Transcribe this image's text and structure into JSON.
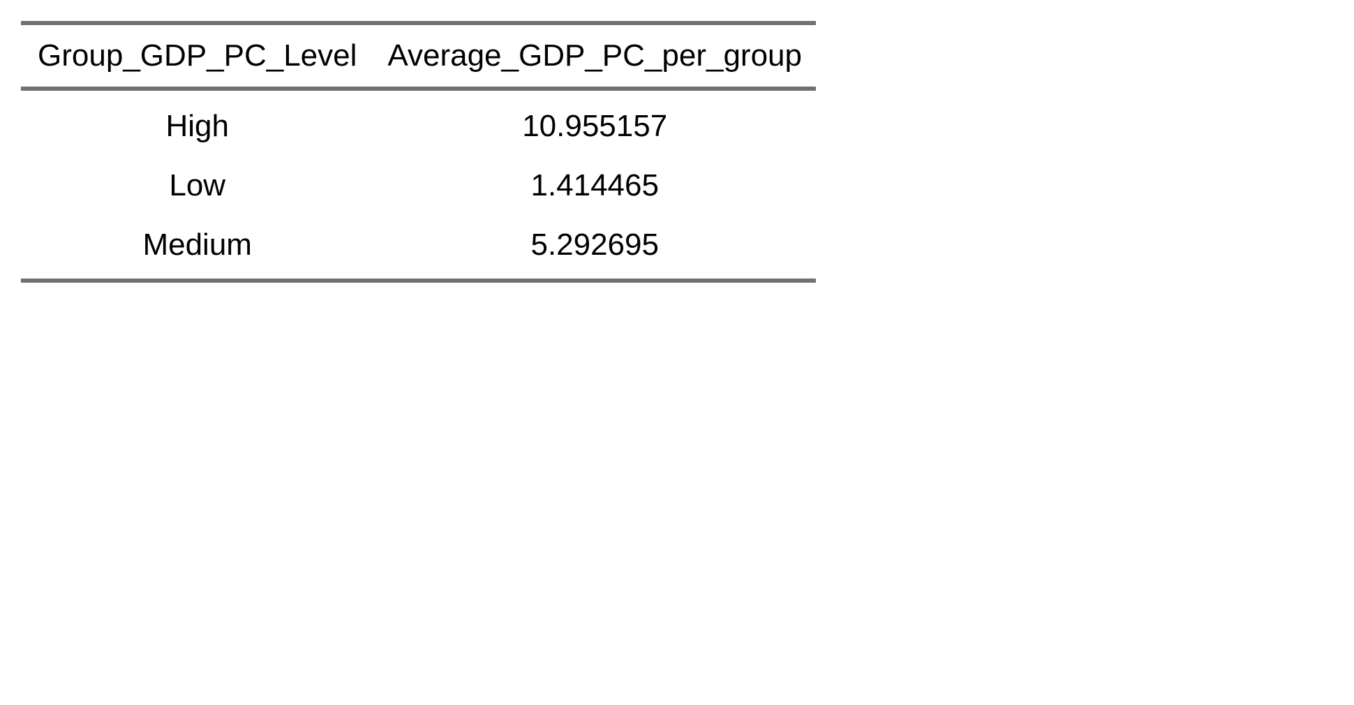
{
  "table": {
    "headers": [
      "Group_GDP_PC_Level",
      "Average_GDP_PC_per_group"
    ],
    "rows": [
      [
        "High",
        "10.955157"
      ],
      [
        "Low",
        "1.414465"
      ],
      [
        "Medium",
        "5.292695"
      ]
    ]
  },
  "colors": {
    "rule": "#707070",
    "text": "#000000",
    "background": "#ffffff"
  }
}
